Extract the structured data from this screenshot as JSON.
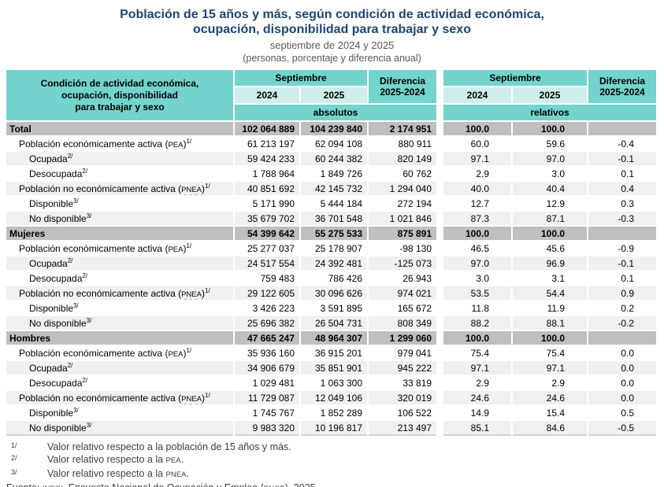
{
  "title": {
    "line1": "Población de 15 años y más, según condición de actividad económica,",
    "line2": "ocupación, disponibilidad para trabajar y sexo",
    "subtitle1": "septiembre de 2024 y 2025",
    "subtitle2": "(personas, porcentaje y diferencia anual)"
  },
  "colors": {
    "title_navy": "#1F4571",
    "header_teal": "#72D4CC",
    "header_teal_light": "#CDEEEB",
    "band_gray": "#BFBFBF",
    "row_shade": "#F0F0F0",
    "spellcheck_red": "#E8452C"
  },
  "chart_data": {
    "type": "table",
    "title": "Población de 15 años y más, según condición de actividad económica, ocupación, disponibilidad para trabajar y sexo",
    "header": {
      "stub": [
        "Condición de actividad económica,",
        "ocupación, disponibilidad",
        "para trabajar y sexo"
      ],
      "month": "Septiembre",
      "years": [
        "2024",
        "2025"
      ],
      "diff_line1": "Diferencia",
      "diff_line2": "2025-2024",
      "abs_label": "absolutos",
      "rel_label": "relativos"
    },
    "columns": [
      "absolutos Septiembre 2024",
      "absolutos Septiembre 2025",
      "Diferencia 2025-2024 absolutos",
      "relativos Septiembre 2024",
      "relativos Septiembre 2025",
      "Diferencia 2025-2024 relativos"
    ],
    "sections": [
      {
        "band": {
          "label": "Total",
          "values": [
            "102 064 889",
            "104 239 840",
            "2 174 951",
            "100.0",
            "100.0",
            ""
          ]
        },
        "rows": [
          {
            "pre": "Población económicamente activa (",
            "caps": "PEA",
            "post": ")",
            "sup": "1/",
            "wavy": false,
            "indent": 1,
            "values": [
              "61 213 197",
              "62 094 108",
              "880 911",
              "60.0",
              "59.6",
              "-0.4"
            ]
          },
          {
            "pre": "Ocupada",
            "caps": "",
            "post": "",
            "sup": "2/",
            "wavy": false,
            "indent": 2,
            "values": [
              "59 424 233",
              "60 244 382",
              "820 149",
              "97.1",
              "97.0",
              "-0.1"
            ]
          },
          {
            "pre": "Desocupada",
            "caps": "",
            "post": "",
            "sup": "2/",
            "wavy": false,
            "indent": 2,
            "values": [
              "1 788 964",
              "1 849 726",
              "60 762",
              "2.9",
              "3.0",
              "0.1"
            ]
          },
          {
            "pre": "Población no económicamente activa (",
            "caps": "PNEA",
            "post": ")",
            "sup": "1/",
            "wavy": true,
            "indent": 1,
            "values": [
              "40 851 692",
              "42 145 732",
              "1 294 040",
              "40.0",
              "40.4",
              "0.4"
            ]
          },
          {
            "pre": "Disponible",
            "caps": "",
            "post": "",
            "sup": "3/",
            "wavy": false,
            "indent": 2,
            "values": [
              "5 171 990",
              "5 444 184",
              "272 194",
              "12.7",
              "12.9",
              "0.3"
            ]
          },
          {
            "pre": "No disponible",
            "caps": "",
            "post": "",
            "sup": "3/",
            "wavy": false,
            "indent": 2,
            "values": [
              "35 679 702",
              "36 701 548",
              "1 021 846",
              "87.3",
              "87.1",
              "-0.3"
            ]
          }
        ]
      },
      {
        "band": {
          "label": "Mujeres",
          "values": [
            "54 399 642",
            "55 275 533",
            "875 891",
            "100.0",
            "100.0",
            ""
          ]
        },
        "rows": [
          {
            "pre": "Población económicamente activa (",
            "caps": "PEA",
            "post": ")",
            "sup": "1/",
            "wavy": false,
            "indent": 1,
            "values": [
              "25 277 037",
              "25 178 907",
              "-98 130",
              "46.5",
              "45.6",
              "-0.9"
            ]
          },
          {
            "pre": "Ocupada",
            "caps": "",
            "post": "",
            "sup": "2/",
            "wavy": false,
            "indent": 2,
            "values": [
              "24 517 554",
              "24 392 481",
              "-125 073",
              "97.0",
              "96.9",
              "-0.1"
            ]
          },
          {
            "pre": "Desocupada",
            "caps": "",
            "post": "",
            "sup": "2/",
            "wavy": false,
            "indent": 2,
            "values": [
              "759 483",
              "786 426",
              "26 943",
              "3.0",
              "3.1",
              "0.1"
            ]
          },
          {
            "pre": "Población no económicamente activa (",
            "caps": "PNEA",
            "post": ")",
            "sup": "1/",
            "wavy": true,
            "indent": 1,
            "values": [
              "29 122 605",
              "30 096 626",
              "974 021",
              "53.5",
              "54.4",
              "0.9"
            ]
          },
          {
            "pre": "Disponible",
            "caps": "",
            "post": "",
            "sup": "3/",
            "wavy": false,
            "indent": 2,
            "values": [
              "3 426 223",
              "3 591 895",
              "165 672",
              "11.8",
              "11.9",
              "0.2"
            ]
          },
          {
            "pre": "No disponible",
            "caps": "",
            "post": "",
            "sup": "3/",
            "wavy": false,
            "indent": 2,
            "values": [
              "25 696 382",
              "26 504 731",
              "808 349",
              "88.2",
              "88.1",
              "-0.2"
            ]
          }
        ]
      },
      {
        "band": {
          "label": "Hombres",
          "values": [
            "47 665 247",
            "48 964 307",
            "1 299 060",
            "100.0",
            "100.0",
            ""
          ]
        },
        "rows": [
          {
            "pre": "Población económicamente activa (",
            "caps": "PEA",
            "post": ")",
            "sup": "1/",
            "wavy": false,
            "indent": 1,
            "values": [
              "35 936 160",
              "36 915 201",
              "979 041",
              "75.4",
              "75.4",
              "0.0"
            ]
          },
          {
            "pre": "Ocupada",
            "caps": "",
            "post": "",
            "sup": "2/",
            "wavy": false,
            "indent": 2,
            "values": [
              "34 906 679",
              "35 851 901",
              "945 222",
              "97.1",
              "97.1",
              "0.0"
            ]
          },
          {
            "pre": "Desocupada",
            "caps": "",
            "post": "",
            "sup": "2/",
            "wavy": false,
            "indent": 2,
            "values": [
              "1 029 481",
              "1 063 300",
              "33 819",
              "2.9",
              "2.9",
              "0.0"
            ]
          },
          {
            "pre": "Población no económicamente activa (",
            "caps": "PNEA",
            "post": ")",
            "sup": "1/",
            "wavy": true,
            "indent": 1,
            "values": [
              "11 729 087",
              "12 049 106",
              "320 019",
              "24.6",
              "24.6",
              "0.0"
            ]
          },
          {
            "pre": "Disponible",
            "caps": "",
            "post": "",
            "sup": "3/",
            "wavy": false,
            "indent": 2,
            "values": [
              "1 745 767",
              "1 852 289",
              "106 522",
              "14.9",
              "15.4",
              "0.5"
            ]
          },
          {
            "pre": "No disponible",
            "caps": "",
            "post": "",
            "sup": "3/",
            "wavy": false,
            "indent": 2,
            "values": [
              "9 983 320",
              "10 196 817",
              "213 497",
              "85.1",
              "84.6",
              "-0.5"
            ]
          }
        ]
      }
    ],
    "footnotes": [
      {
        "marker": "1/",
        "pre": "Valor relativo respecto a la población de 15 años y más.",
        "caps": "",
        "post": ""
      },
      {
        "marker": "2/",
        "pre": "Valor relativo respecto a la ",
        "caps": "PEA",
        "post": "."
      },
      {
        "marker": "3/",
        "pre": "Valor relativo respecto a la ",
        "caps": "PNEA",
        "post": "."
      }
    ],
    "source": {
      "pre": "Fuente: ",
      "caps1": "INEGI",
      "mid": ". Encuesta Nacional de Ocupación y Empleo (",
      "caps2": "ENOE",
      "post": "), 2025."
    }
  }
}
